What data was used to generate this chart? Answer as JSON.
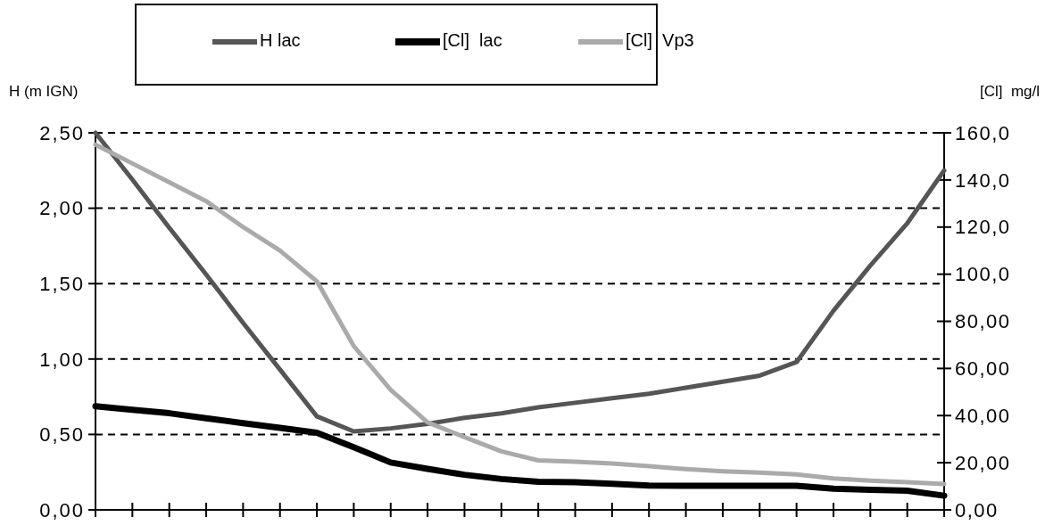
{
  "chart_data": {
    "type": "line",
    "ylabel": "H (m IGN)",
    "y2label": "[Cl]  mg/l",
    "categories": [
      null,
      null,
      null,
      null,
      null,
      null,
      null,
      null,
      null,
      null,
      null,
      null,
      null,
      null,
      null,
      null,
      null,
      null,
      null,
      null,
      null,
      null,
      null,
      null
    ],
    "ylim": [
      0,
      2.5
    ],
    "yticks": [
      {
        "value": 0,
        "label": "0,00"
      },
      {
        "value": 0.5,
        "label": "0,50"
      },
      {
        "value": 1,
        "label": "1,00"
      },
      {
        "value": 1.5,
        "label": "1,50"
      },
      {
        "value": 2,
        "label": "2,00"
      },
      {
        "value": 2.5,
        "label": "2,50"
      }
    ],
    "y2lim": [
      0,
      160
    ],
    "y2ticks": [
      {
        "value": 0,
        "label": "0,00"
      },
      {
        "value": 20,
        "label": "20,00"
      },
      {
        "value": 40,
        "label": "40,00"
      },
      {
        "value": 60,
        "label": "60,00"
      },
      {
        "value": 80,
        "label": "80,00"
      },
      {
        "value": 100,
        "label": "100,0"
      },
      {
        "value": 120,
        "label": "120,0"
      },
      {
        "value": 140,
        "label": "140,0"
      },
      {
        "value": 160,
        "label": "160,0"
      }
    ],
    "grid": "y",
    "legend": "top",
    "line_style": "solid",
    "series": [
      {
        "name": "H lac",
        "color": "#555555",
        "values": [
          2.5,
          2.19,
          1.87,
          1.56,
          1.24,
          0.93,
          0.62,
          0.52,
          0.54,
          0.57,
          0.61,
          0.64,
          0.68,
          0.71,
          0.74,
          0.77,
          0.81,
          0.85,
          0.89,
          0.98,
          1.32,
          1.62,
          1.9,
          2.25
        ]
      },
      {
        "name": "[Cl]  lac",
        "color": "#000000",
        "axis": "y2",
        "values": [
          44,
          42.5,
          41,
          38.9,
          36.8,
          34.8,
          32.7,
          26.6,
          20.1,
          17.4,
          14.9,
          13.1,
          11.9,
          11.7,
          11.1,
          10.3,
          10.2,
          10.2,
          10.2,
          10.2,
          9,
          8.5,
          8.1,
          6
        ]
      },
      {
        "name": "[Cl]  Vp3",
        "color": "#aaaaaa",
        "axis": "y2",
        "values": [
          155,
          147,
          139,
          131,
          120,
          110,
          97,
          69.5,
          50.9,
          37.1,
          30.9,
          24.8,
          21,
          20.4,
          19.7,
          18.5,
          17.3,
          16.4,
          15.8,
          15,
          13.3,
          12.4,
          11.7,
          11
        ]
      }
    ]
  }
}
